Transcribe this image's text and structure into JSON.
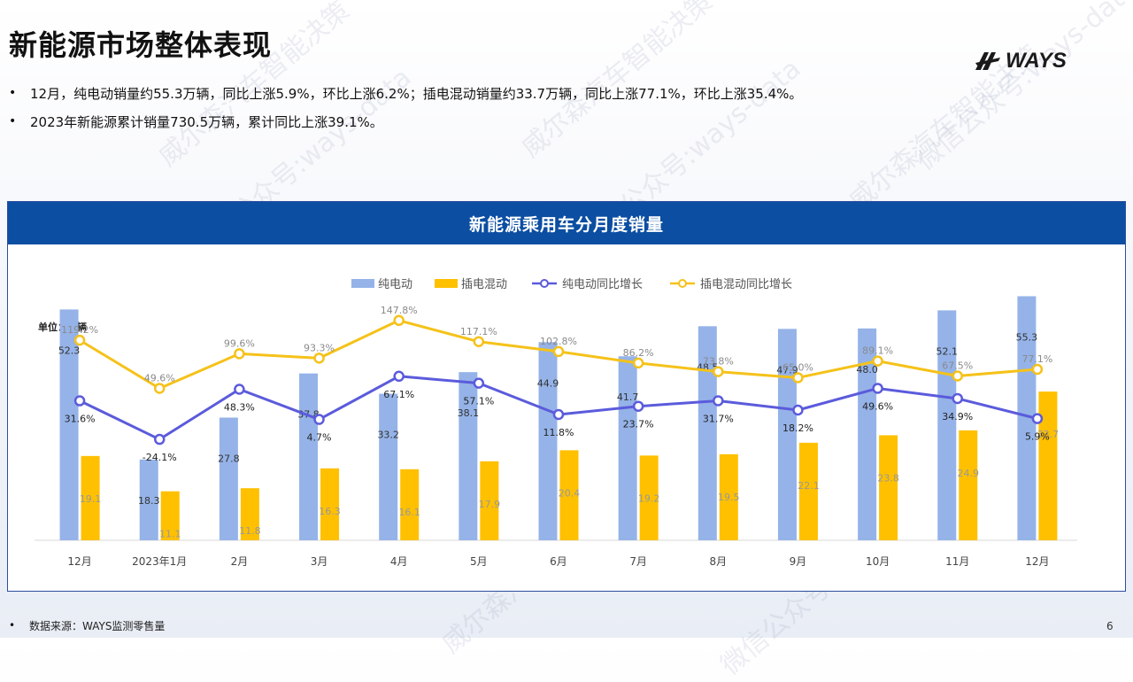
{
  "slide": {
    "title": "新能源市场整体表现",
    "logo_text": "WAYS",
    "bullets": [
      "12月，纯电动销量约55.3万辆，同比上涨5.9%，环比上涨6.2%；插电混动销量约33.7万辆，同比上涨77.1%，环比上涨35.4%。",
      "2023年新能源累计销量730.5万辆，累计同比上涨39.1%。"
    ],
    "source": "数据来源：WAYS监测零售量",
    "page_number": "6",
    "watermark_texts": [
      "威尔森汽车智能决策",
      "微信公众号:ways-data"
    ]
  },
  "chart_data": {
    "type": "bar",
    "title": "新能源乘用车分月度销量",
    "unit_label": "单位：万辆",
    "categories": [
      "12月",
      "2023年1月",
      "2月",
      "3月",
      "4月",
      "5月",
      "6月",
      "7月",
      "8月",
      "9月",
      "10月",
      "11月",
      "12月"
    ],
    "series": [
      {
        "name": "纯电动",
        "kind": "bar",
        "color": "#95b3e8",
        "values": [
          52.3,
          18.3,
          27.8,
          37.8,
          33.2,
          38.1,
          44.9,
          41.7,
          48.5,
          47.9,
          48.0,
          52.1,
          55.3
        ]
      },
      {
        "name": "插电混动",
        "kind": "bar",
        "color": "#ffc000",
        "values": [
          19.1,
          11.1,
          11.8,
          16.3,
          16.1,
          17.9,
          20.4,
          19.2,
          19.5,
          22.1,
          23.8,
          24.9,
          33.7
        ]
      },
      {
        "name": "纯电动同比增长",
        "kind": "line",
        "color": "#5b5bdc",
        "values": [
          31.6,
          -24.1,
          48.3,
          4.7,
          67.1,
          57.1,
          11.8,
          23.7,
          31.7,
          18.2,
          49.6,
          34.9,
          5.9
        ]
      },
      {
        "name": "插电混动同比增长",
        "kind": "line",
        "color": "#f5c21a",
        "values": [
          119.2,
          49.6,
          99.6,
          93.3,
          147.8,
          117.1,
          102.8,
          86.2,
          73.8,
          65.0,
          89.1,
          67.5,
          77.1
        ]
      }
    ],
    "bar_ylim": [
      0,
      58
    ],
    "line_ylim": [
      -170,
      200
    ],
    "legend_position": "top-center",
    "grid": false,
    "line_label_suffix": "%"
  }
}
